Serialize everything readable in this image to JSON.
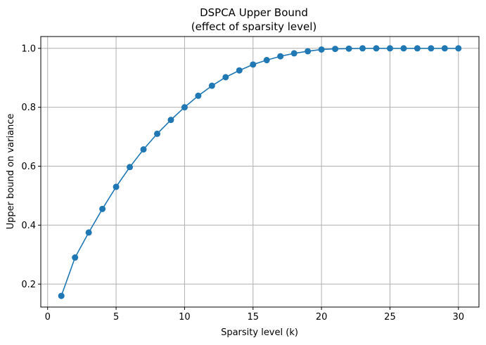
{
  "chart_data": {
    "type": "line",
    "title": "DSPCA Upper Bound",
    "subtitle": "(effect of sparsity level)",
    "xlabel": "Sparsity level (k)",
    "ylabel": "Upper bound on variance",
    "xlim": [
      -0.5,
      31.5
    ],
    "ylim": [
      0.122,
      1.04
    ],
    "xticks": [
      0,
      5,
      10,
      15,
      20,
      25,
      30
    ],
    "xtick_labels": [
      "0",
      "5",
      "10",
      "15",
      "20",
      "25",
      "30"
    ],
    "yticks": [
      0.2,
      0.4,
      0.6,
      0.8,
      1.0
    ],
    "ytick_labels": [
      "0.2",
      "0.4",
      "0.6",
      "0.8",
      "1.0"
    ],
    "grid": true,
    "legend": "none",
    "series": [
      {
        "color": "#1f77b4",
        "marker": "circle",
        "x": [
          1,
          2,
          3,
          4,
          5,
          6,
          7,
          8,
          9,
          10,
          11,
          12,
          13,
          14,
          15,
          16,
          17,
          18,
          19,
          20,
          21,
          22,
          23,
          24,
          25,
          26,
          27,
          28,
          29,
          30
        ],
        "y": [
          0.16,
          0.29,
          0.375,
          0.455,
          0.53,
          0.597,
          0.657,
          0.71,
          0.757,
          0.8,
          0.839,
          0.873,
          0.902,
          0.925,
          0.945,
          0.96,
          0.973,
          0.983,
          0.99,
          0.996,
          0.998,
          0.999,
          1.0,
          1.0,
          1.0,
          1.0,
          1.0,
          1.0,
          1.0,
          1.0
        ]
      }
    ]
  }
}
